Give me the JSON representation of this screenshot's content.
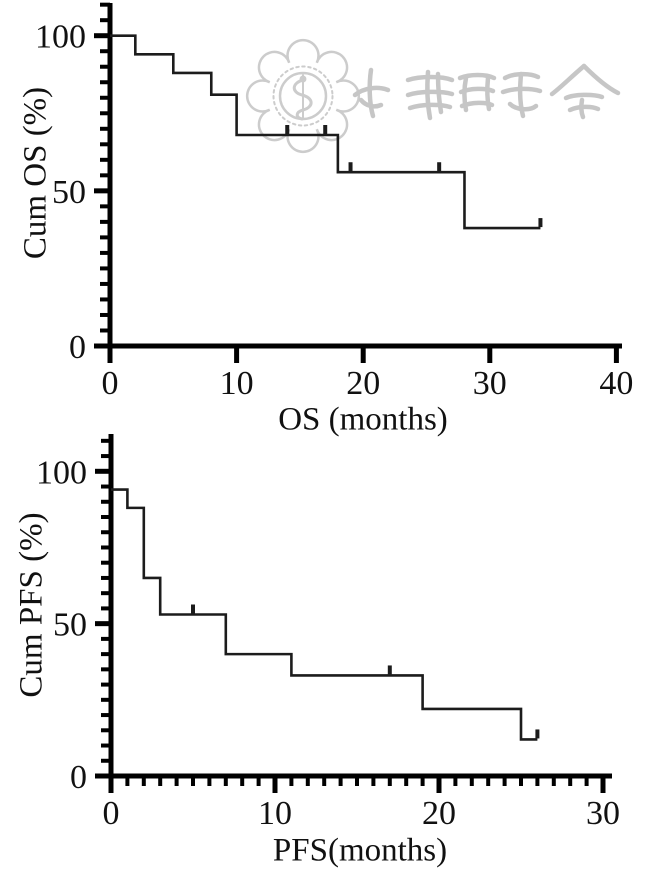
{
  "colors": {
    "axis": "#000000",
    "curve": "#1c1c1c",
    "text": "#111111",
    "watermark_emblem": "#cccccc",
    "watermark_calligraphy": "#c6c6c6"
  },
  "watermark": {
    "emblem": "chinese-medical-association-emblem",
    "calligraphy": "chinese-medical-association-calligraphy"
  },
  "chart_data": [
    {
      "type": "line",
      "subtype": "kaplan-meier-step",
      "title": "",
      "xlabel": "OS (months)",
      "ylabel": "Cum OS (%)",
      "xlim": [
        0,
        40
      ],
      "ylim": [
        0,
        100
      ],
      "x_ticks": [
        0,
        10,
        20,
        30,
        40
      ],
      "y_ticks": [
        0,
        50,
        100
      ],
      "y_minor_tick_step": 5,
      "x_minor_tick_step": null,
      "grid": false,
      "legend": "none",
      "steps": [
        {
          "x": 0,
          "y": 100
        },
        {
          "x": 2,
          "y": 94
        },
        {
          "x": 5,
          "y": 88
        },
        {
          "x": 8,
          "y": 81
        },
        {
          "x": 10,
          "y": 68
        },
        {
          "x": 18,
          "y": 56
        },
        {
          "x": 28,
          "y": 38
        }
      ],
      "curve_end_x": 34,
      "censor_marks": [
        {
          "x": 14,
          "y": 68
        },
        {
          "x": 17,
          "y": 68
        },
        {
          "x": 19,
          "y": 56
        },
        {
          "x": 26,
          "y": 56
        },
        {
          "x": 34,
          "y": 38
        }
      ]
    },
    {
      "type": "line",
      "subtype": "kaplan-meier-step",
      "title": "",
      "xlabel": "PFS(months)",
      "ylabel": "Cum PFS (%)",
      "xlim": [
        0,
        30
      ],
      "ylim": [
        0,
        100
      ],
      "x_ticks": [
        0,
        10,
        20,
        30
      ],
      "y_ticks": [
        0,
        50,
        100
      ],
      "y_minor_tick_step": 5,
      "x_minor_tick_step": 1,
      "grid": false,
      "legend": "none",
      "steps": [
        {
          "x": 0,
          "y": 94
        },
        {
          "x": 1,
          "y": 88
        },
        {
          "x": 2,
          "y": 65
        },
        {
          "x": 3,
          "y": 53
        },
        {
          "x": 7,
          "y": 40
        },
        {
          "x": 11,
          "y": 33
        },
        {
          "x": 19,
          "y": 22
        },
        {
          "x": 25,
          "y": 12
        }
      ],
      "curve_end_x": 26,
      "censor_marks": [
        {
          "x": 5,
          "y": 53
        },
        {
          "x": 17,
          "y": 33
        },
        {
          "x": 26,
          "y": 12
        }
      ]
    }
  ]
}
